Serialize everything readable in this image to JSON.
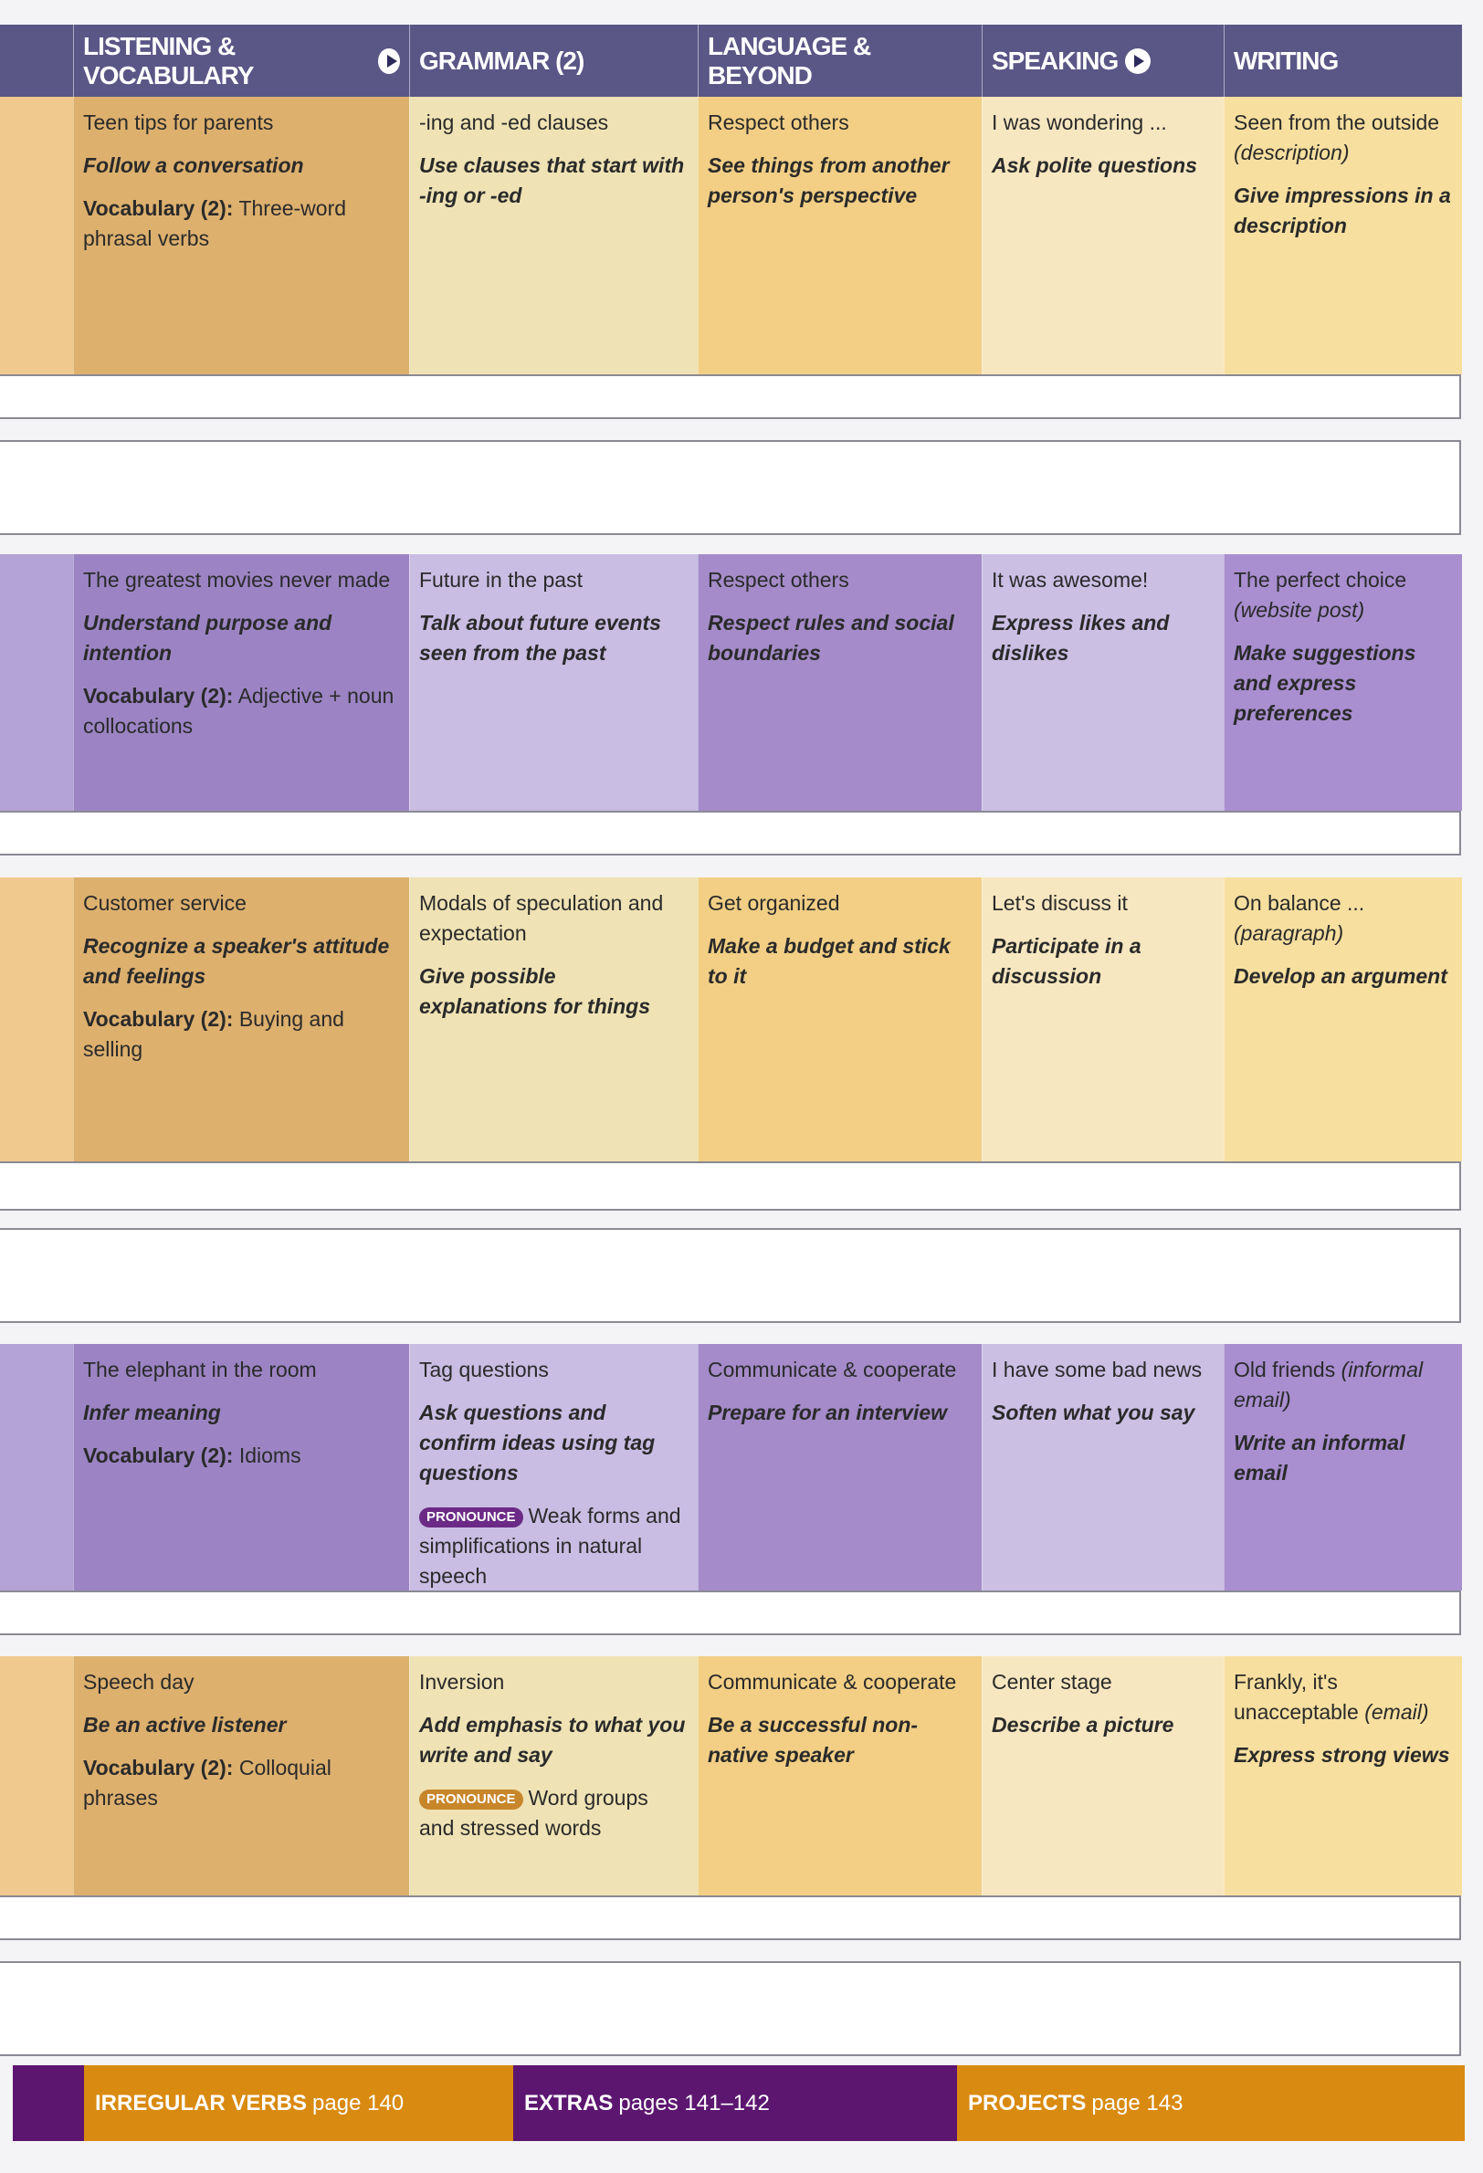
{
  "header": {
    "columns": [
      {
        "label": "LISTENING & VOCABULARY",
        "video_icon": true
      },
      {
        "label": "GRAMMAR (2)",
        "video_icon": false
      },
      {
        "label": "LANGUAGE & BEYOND",
        "video_icon": false
      },
      {
        "label": "SPEAKING",
        "video_icon": true
      },
      {
        "label": "WRITING",
        "video_icon": false
      }
    ]
  },
  "colors": {
    "orange": "#d98a10",
    "purple": "#5c1670",
    "header": "#5a5686"
  },
  "rows": [
    {
      "theme": "orange",
      "cells": [
        {
          "topic": "Teen tips for parents",
          "goal": "Follow a conversation",
          "vocab_label": "Vocabulary (2):",
          "vocab_text": "Three-word phrasal verbs"
        },
        {
          "topic": "-ing and -ed clauses",
          "goal": "Use clauses that start with -ing or -ed"
        },
        {
          "topic": "Respect others",
          "goal": "See things from another person's perspective"
        },
        {
          "topic": "I was wondering ...",
          "goal": "Ask polite questions"
        },
        {
          "topic": "Seen from the outside",
          "topic_note": "(description)",
          "goal": "Give impressions in a description"
        }
      ]
    },
    {
      "theme": "purple",
      "cells": [
        {
          "topic": "The greatest movies never made",
          "goal": "Understand purpose and intention",
          "vocab_label": "Vocabulary (2):",
          "vocab_text": "Adjective + noun collocations"
        },
        {
          "topic": "Future in the past",
          "goal": "Talk about future events seen from the past"
        },
        {
          "topic": "Respect others",
          "goal": "Respect rules and social boundaries"
        },
        {
          "topic": "It was awesome!",
          "goal": "Express likes and dislikes"
        },
        {
          "topic": "The perfect choice",
          "topic_note": "(website post)",
          "goal": "Make suggestions and express preferences"
        }
      ]
    },
    {
      "theme": "orange",
      "cells": [
        {
          "topic": "Customer service",
          "goal": "Recognize a speaker's attitude and feelings",
          "vocab_label": "Vocabulary (2):",
          "vocab_text": "Buying and selling"
        },
        {
          "topic": "Modals of speculation and expectation",
          "goal": "Give possible explanations for things"
        },
        {
          "topic": "Get organized",
          "goal": "Make a budget and stick to it"
        },
        {
          "topic": "Let's discuss it",
          "goal": "Participate in a discussion"
        },
        {
          "topic": "On balance ...",
          "topic_note": "(paragraph)",
          "goal": "Develop an argument"
        }
      ]
    },
    {
      "theme": "purple",
      "cells": [
        {
          "topic": "The elephant in the room",
          "goal": "Infer meaning",
          "vocab_label": "Vocabulary (2):",
          "vocab_text": "Idioms"
        },
        {
          "topic": "Tag questions",
          "goal": "Ask questions and confirm ideas using tag questions",
          "pronounce_badge": "PRONOUNCE",
          "pronounce_text": "Weak forms and simplifications in natural speech"
        },
        {
          "topic": "Communicate & cooperate",
          "goal": "Prepare for an interview"
        },
        {
          "topic": "I have some bad news",
          "goal": "Soften what you say"
        },
        {
          "topic": "Old friends",
          "topic_note": "(informal email)",
          "goal": "Write an informal email"
        }
      ]
    },
    {
      "theme": "orange",
      "cells": [
        {
          "topic": "Speech day",
          "goal": "Be an active listener",
          "vocab_label": "Vocabulary (2):",
          "vocab_text": "Colloquial phrases"
        },
        {
          "topic": "Inversion",
          "goal": "Add emphasis to what you write and say",
          "pronounce_badge": "PRONOUNCE",
          "pronounce_text": "Word groups and stressed words"
        },
        {
          "topic": "Communicate & cooperate",
          "goal": "Be a successful non-native speaker"
        },
        {
          "topic": "Center stage",
          "goal": "Describe a picture"
        },
        {
          "topic": "Frankly, it's unacceptable",
          "topic_note": "(email)",
          "goal": "Express strong views"
        }
      ]
    }
  ],
  "footer": [
    {
      "bold": "IRREGULAR VERBS",
      "text": "page 140"
    },
    {
      "bold": "EXTRAS",
      "text": "pages 141–142"
    },
    {
      "bold": "PROJECTS",
      "text": "page 143"
    }
  ]
}
